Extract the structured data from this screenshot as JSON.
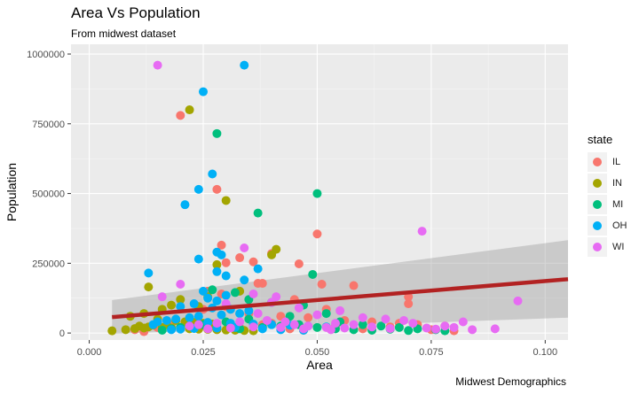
{
  "chart_data": {
    "type": "scatter",
    "title": "Area Vs Population",
    "subtitle": "From midwest dataset",
    "caption": "Midwest Demographics",
    "xlabel": "Area",
    "ylabel": "Population",
    "xlim": [
      -0.004,
      0.105
    ],
    "ylim": [
      -25000,
      1035000
    ],
    "x_ticks": [
      0.0,
      0.025,
      0.05,
      0.075,
      0.1
    ],
    "x_tick_labels": [
      "0.000",
      "0.025",
      "0.050",
      "0.075",
      "0.100"
    ],
    "y_ticks": [
      0,
      250000,
      500000,
      750000,
      1000000
    ],
    "y_tick_labels": [
      "0",
      "250000",
      "500000",
      "750000",
      "1000000"
    ],
    "legend": {
      "title": "state",
      "placement": "right"
    },
    "background": "#ebebeb",
    "grid": true,
    "series": [
      {
        "name": "IL",
        "color": "#f8766d",
        "points": [
          [
            0.02,
            780000
          ],
          [
            0.028,
            515000
          ],
          [
            0.05,
            355000
          ],
          [
            0.029,
            315000
          ],
          [
            0.033,
            270000
          ],
          [
            0.036,
            255000
          ],
          [
            0.03,
            252000
          ],
          [
            0.046,
            248000
          ],
          [
            0.04,
            285000
          ],
          [
            0.038,
            178000
          ],
          [
            0.037,
            178000
          ],
          [
            0.051,
            175000
          ],
          [
            0.058,
            170000
          ],
          [
            0.07,
            130000
          ],
          [
            0.07,
            105000
          ],
          [
            0.026,
            150000
          ],
          [
            0.029,
            140000
          ],
          [
            0.045,
            120000
          ],
          [
            0.052,
            85000
          ],
          [
            0.03,
            95000
          ],
          [
            0.025,
            85000
          ],
          [
            0.035,
            70000
          ],
          [
            0.042,
            60000
          ],
          [
            0.048,
            55000
          ],
          [
            0.056,
            45000
          ],
          [
            0.062,
            40000
          ],
          [
            0.068,
            35000
          ],
          [
            0.072,
            30000
          ],
          [
            0.078,
            25000
          ],
          [
            0.01,
            12000
          ],
          [
            0.015,
            20000
          ],
          [
            0.018,
            30000
          ],
          [
            0.022,
            45000
          ],
          [
            0.033,
            20000
          ],
          [
            0.04,
            35000
          ],
          [
            0.044,
            15000
          ],
          [
            0.054,
            25000
          ],
          [
            0.06,
            15000
          ],
          [
            0.066,
            22000
          ],
          [
            0.075,
            12000
          ],
          [
            0.08,
            8000
          ],
          [
            0.012,
            5000
          ],
          [
            0.027,
            25000
          ],
          [
            0.038,
            30000
          ],
          [
            0.047,
            10000
          ]
        ]
      },
      {
        "name": "IN",
        "color": "#a3a500",
        "points": [
          [
            0.022,
            800000
          ],
          [
            0.03,
            475000
          ],
          [
            0.041,
            300000
          ],
          [
            0.028,
            245000
          ],
          [
            0.013,
            165000
          ],
          [
            0.04,
            280000
          ],
          [
            0.033,
            150000
          ],
          [
            0.026,
            130000
          ],
          [
            0.02,
            120000
          ],
          [
            0.018,
            100000
          ],
          [
            0.024,
            95000
          ],
          [
            0.016,
            85000
          ],
          [
            0.012,
            70000
          ],
          [
            0.009,
            60000
          ],
          [
            0.015,
            50000
          ],
          [
            0.019,
            45000
          ],
          [
            0.021,
            40000
          ],
          [
            0.023,
            38000
          ],
          [
            0.025,
            35000
          ],
          [
            0.027,
            32000
          ],
          [
            0.017,
            30000
          ],
          [
            0.014,
            28000
          ],
          [
            0.011,
            25000
          ],
          [
            0.013,
            22000
          ],
          [
            0.016,
            20000
          ],
          [
            0.018,
            18000
          ],
          [
            0.02,
            16000
          ],
          [
            0.022,
            15000
          ],
          [
            0.024,
            14000
          ],
          [
            0.026,
            13000
          ],
          [
            0.028,
            12000
          ],
          [
            0.03,
            11000
          ],
          [
            0.032,
            10000
          ],
          [
            0.034,
            9000
          ],
          [
            0.036,
            8000
          ],
          [
            0.005,
            8000
          ],
          [
            0.008,
            12000
          ],
          [
            0.01,
            16000
          ],
          [
            0.012,
            18000
          ]
        ]
      },
      {
        "name": "MI",
        "color": "#00bf7d",
        "points": [
          [
            0.028,
            715000
          ],
          [
            0.05,
            500000
          ],
          [
            0.037,
            430000
          ],
          [
            0.049,
            210000
          ],
          [
            0.027,
            155000
          ],
          [
            0.032,
            145000
          ],
          [
            0.035,
            120000
          ],
          [
            0.04,
            110000
          ],
          [
            0.047,
            100000
          ],
          [
            0.052,
            70000
          ],
          [
            0.044,
            60000
          ],
          [
            0.055,
            40000
          ],
          [
            0.06,
            30000
          ],
          [
            0.064,
            25000
          ],
          [
            0.068,
            20000
          ],
          [
            0.072,
            15000
          ],
          [
            0.076,
            12000
          ],
          [
            0.078,
            8000
          ],
          [
            0.035,
            50000
          ],
          [
            0.03,
            40000
          ],
          [
            0.025,
            30000
          ],
          [
            0.022,
            25000
          ],
          [
            0.02,
            20000
          ],
          [
            0.018,
            15000
          ],
          [
            0.016,
            10000
          ],
          [
            0.033,
            15000
          ],
          [
            0.038,
            20000
          ],
          [
            0.042,
            25000
          ],
          [
            0.046,
            30000
          ],
          [
            0.05,
            20000
          ],
          [
            0.054,
            15000
          ],
          [
            0.058,
            12000
          ],
          [
            0.062,
            10000
          ],
          [
            0.066,
            14000
          ],
          [
            0.07,
            9000
          ]
        ]
      },
      {
        "name": "OH",
        "color": "#00b0f6",
        "points": [
          [
            0.034,
            960000
          ],
          [
            0.025,
            865000
          ],
          [
            0.027,
            570000
          ],
          [
            0.024,
            515000
          ],
          [
            0.021,
            460000
          ],
          [
            0.028,
            290000
          ],
          [
            0.029,
            280000
          ],
          [
            0.024,
            265000
          ],
          [
            0.037,
            230000
          ],
          [
            0.028,
            220000
          ],
          [
            0.013,
            215000
          ],
          [
            0.03,
            205000
          ],
          [
            0.034,
            190000
          ],
          [
            0.025,
            150000
          ],
          [
            0.03,
            135000
          ],
          [
            0.026,
            125000
          ],
          [
            0.028,
            115000
          ],
          [
            0.023,
            105000
          ],
          [
            0.02,
            95000
          ],
          [
            0.027,
            90000
          ],
          [
            0.031,
            85000
          ],
          [
            0.035,
            80000
          ],
          [
            0.033,
            70000
          ],
          [
            0.029,
            65000
          ],
          [
            0.024,
            60000
          ],
          [
            0.022,
            55000
          ],
          [
            0.019,
            50000
          ],
          [
            0.017,
            45000
          ],
          [
            0.015,
            40000
          ],
          [
            0.026,
            38000
          ],
          [
            0.031,
            35000
          ],
          [
            0.036,
            32000
          ],
          [
            0.04,
            30000
          ],
          [
            0.044,
            28000
          ],
          [
            0.048,
            25000
          ],
          [
            0.052,
            22000
          ],
          [
            0.032,
            20000
          ],
          [
            0.028,
            18000
          ],
          [
            0.023,
            16000
          ],
          [
            0.02,
            14000
          ],
          [
            0.018,
            12000
          ],
          [
            0.038,
            15000
          ],
          [
            0.042,
            12000
          ],
          [
            0.047,
            10000
          ],
          [
            0.014,
            30000
          ]
        ]
      },
      {
        "name": "WI",
        "color": "#e76bf3",
        "points": [
          [
            0.015,
            960000
          ],
          [
            0.073,
            365000
          ],
          [
            0.034,
            305000
          ],
          [
            0.02,
            175000
          ],
          [
            0.036,
            140000
          ],
          [
            0.016,
            130000
          ],
          [
            0.094,
            115000
          ],
          [
            0.041,
            130000
          ],
          [
            0.04,
            110000
          ],
          [
            0.03,
            105000
          ],
          [
            0.046,
            90000
          ],
          [
            0.055,
            80000
          ],
          [
            0.037,
            70000
          ],
          [
            0.05,
            65000
          ],
          [
            0.06,
            55000
          ],
          [
            0.065,
            50000
          ],
          [
            0.069,
            45000
          ],
          [
            0.071,
            35000
          ],
          [
            0.082,
            40000
          ],
          [
            0.089,
            15000
          ],
          [
            0.078,
            25000
          ],
          [
            0.08,
            20000
          ],
          [
            0.058,
            30000
          ],
          [
            0.054,
            35000
          ],
          [
            0.043,
            40000
          ],
          [
            0.039,
            45000
          ],
          [
            0.033,
            40000
          ],
          [
            0.028,
            35000
          ],
          [
            0.024,
            30000
          ],
          [
            0.022,
            25000
          ],
          [
            0.045,
            30000
          ],
          [
            0.048,
            25000
          ],
          [
            0.052,
            20000
          ],
          [
            0.056,
            18000
          ],
          [
            0.062,
            22000
          ],
          [
            0.066,
            16000
          ],
          [
            0.074,
            18000
          ],
          [
            0.076,
            14000
          ],
          [
            0.084,
            12000
          ],
          [
            0.031,
            18000
          ],
          [
            0.026,
            15000
          ],
          [
            0.036,
            22000
          ],
          [
            0.042,
            20000
          ],
          [
            0.047,
            15000
          ],
          [
            0.053,
            12000
          ]
        ]
      }
    ],
    "trend": {
      "color": "#b22222",
      "band_color": "#999999",
      "x": [
        0.005,
        0.105
      ],
      "y": [
        57000,
        193000
      ],
      "band_lower": [
        -3000,
        55000
      ],
      "band_upper": [
        118000,
        333000
      ]
    }
  }
}
